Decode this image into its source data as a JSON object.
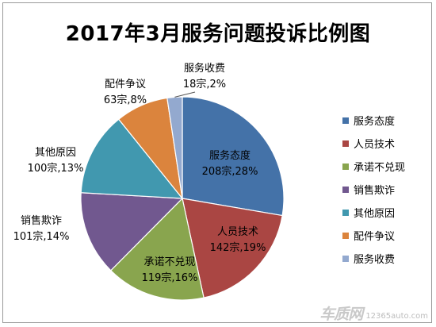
{
  "chart_data": {
    "type": "pie",
    "title": "2017年3月服务问题投诉比例图",
    "slices": [
      {
        "name": "服务态度",
        "count_label": "208宗,28%",
        "value": 208,
        "percent": 28,
        "color": "#4472A8"
      },
      {
        "name": "人员技术",
        "count_label": "142宗,19%",
        "value": 142,
        "percent": 19,
        "color": "#AA4643"
      },
      {
        "name": "承诺不兑现",
        "count_label": "119宗,16%",
        "value": 119,
        "percent": 16,
        "color": "#89A54E"
      },
      {
        "name": "销售欺诈",
        "count_label": "101宗,14%",
        "value": 101,
        "percent": 14,
        "color": "#71588F"
      },
      {
        "name": "其他原因",
        "count_label": "100宗,13%",
        "value": 100,
        "percent": 13,
        "color": "#4198AF"
      },
      {
        "name": "配件争议",
        "count_label": "63宗,8%",
        "value": 63,
        "percent": 8,
        "color": "#DB843D"
      },
      {
        "name": "服务收费",
        "count_label": "18宗,2%",
        "value": 18,
        "percent": 2,
        "color": "#93A9CF"
      }
    ],
    "legend": "right"
  },
  "watermark": {
    "brand": "车质网",
    "url": "12365auto.com"
  }
}
